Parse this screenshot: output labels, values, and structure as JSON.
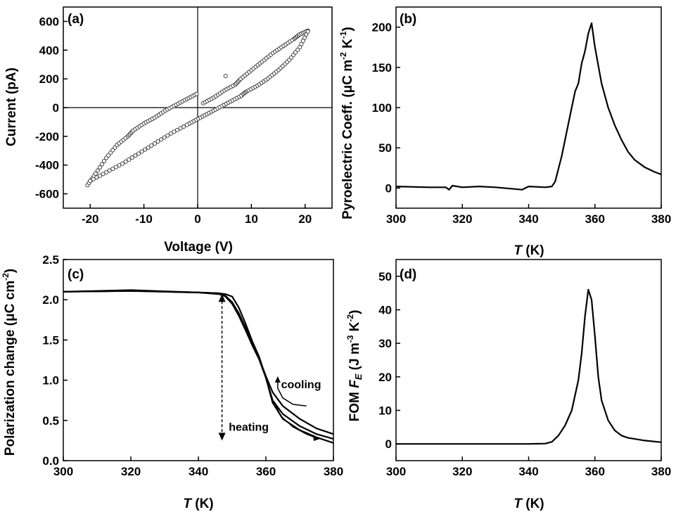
{
  "chart_data": [
    {
      "id": "a",
      "panel_label": "(a)",
      "type": "scatter",
      "xlabel": "Voltage (V)",
      "ylabel": "Current (pA)",
      "xlim": [
        -25,
        25
      ],
      "ylim": [
        -700,
        700
      ],
      "xticks": [
        -20,
        -10,
        0,
        10,
        20
      ],
      "yticks": [
        -600,
        -400,
        -200,
        0,
        200,
        400,
        600
      ],
      "zero_lines": true,
      "marker": "open-circle",
      "series": [
        {
          "branch": "upper",
          "x": [
            -20.5,
            -19,
            -17,
            -15,
            -13,
            -12,
            -10,
            -8,
            -6,
            -4,
            -2,
            -0.2
          ],
          "y": [
            -540,
            -460,
            -350,
            -260,
            -200,
            -160,
            -110,
            -70,
            -20,
            20,
            60,
            95
          ]
        },
        {
          "branch": "forward",
          "x": [
            1,
            3,
            5,
            7,
            8,
            10,
            12,
            14,
            16,
            18,
            19,
            20.5
          ],
          "y": [
            30,
            70,
            120,
            160,
            200,
            260,
            320,
            380,
            430,
            480,
            510,
            535
          ]
        },
        {
          "branch": "return",
          "x": [
            20.5,
            19,
            17,
            15,
            13,
            11,
            9,
            8,
            6,
            4,
            2,
            0,
            -2,
            -5,
            -8,
            -11,
            -14,
            -17,
            -20
          ],
          "y": [
            530,
            420,
            330,
            260,
            200,
            150,
            110,
            80,
            40,
            0,
            -40,
            -80,
            -120,
            -180,
            -250,
            -320,
            -390,
            -450,
            -510
          ]
        },
        {
          "branch": "outlier",
          "x": [
            5.2
          ],
          "y": [
            220
          ]
        }
      ]
    },
    {
      "id": "b",
      "panel_label": "(b)",
      "type": "line",
      "xlabel_var": "T",
      "xlabel_unit": "(K)",
      "ylabel": "Pyroelectric Coeff. (μC m",
      "ylabel_sup1": "-2",
      "ylabel_mid": " K",
      "ylabel_sup2": "-1",
      "ylabel_end": ")",
      "xlim": [
        300,
        380
      ],
      "ylim": [
        -25,
        225
      ],
      "xticks": [
        300,
        320,
        340,
        360,
        380
      ],
      "yticks": [
        0,
        50,
        100,
        150,
        200
      ],
      "x": [
        300,
        310,
        315,
        316,
        317,
        320,
        325,
        330,
        338,
        340,
        345,
        347,
        348,
        350,
        352,
        354,
        355,
        356,
        357,
        358,
        359,
        360,
        362,
        364,
        366,
        368,
        370,
        372,
        375,
        378,
        380
      ],
      "y": [
        2,
        1,
        1,
        -2,
        3,
        1,
        2,
        1,
        -2,
        2,
        1,
        2,
        8,
        40,
        80,
        120,
        130,
        155,
        170,
        192,
        205,
        175,
        130,
        100,
        78,
        60,
        45,
        35,
        26,
        20,
        17
      ]
    },
    {
      "id": "c",
      "panel_label": "(c)",
      "type": "line",
      "xlabel_var": "T",
      "xlabel_unit": "(K)",
      "ylabel": "Polarization change (μC cm",
      "ylabel_sup1": "-2",
      "ylabel_end": ")",
      "xlim": [
        300,
        380
      ],
      "ylim": [
        0.0,
        2.5
      ],
      "xticks": [
        300,
        320,
        340,
        360,
        380
      ],
      "yticks": [
        0.0,
        0.5,
        1.0,
        1.5,
        2.0,
        2.5
      ],
      "ytick_labels": [
        "0.0",
        "0.5",
        "1.0",
        "1.5",
        "2.0",
        "2.5"
      ],
      "series": [
        {
          "x": [
            300,
            320,
            340,
            346,
            348,
            350,
            352,
            354,
            356,
            358,
            360,
            362,
            365,
            370,
            375,
            380
          ],
          "y": [
            2.1,
            2.11,
            2.09,
            2.07,
            2.05,
            1.97,
            1.83,
            1.65,
            1.45,
            1.27,
            1.05,
            0.85,
            0.68,
            0.52,
            0.4,
            0.33
          ]
        },
        {
          "x": [
            300,
            320,
            340,
            346,
            348,
            350,
            352,
            354,
            356,
            358,
            360,
            362,
            365,
            370,
            375,
            380
          ],
          "y": [
            2.1,
            2.12,
            2.09,
            2.08,
            2.04,
            1.95,
            1.8,
            1.62,
            1.43,
            1.26,
            1.03,
            0.75,
            0.58,
            0.43,
            0.33,
            0.27
          ]
        },
        {
          "x": [
            300,
            320,
            340,
            346,
            348,
            350,
            352,
            354,
            356,
            358,
            360,
            362,
            365,
            370,
            375,
            380
          ],
          "y": [
            2.1,
            2.11,
            2.09,
            2.08,
            2.07,
            2.04,
            1.9,
            1.7,
            1.48,
            1.29,
            1.03,
            0.72,
            0.52,
            0.38,
            0.29,
            0.22
          ]
        }
      ],
      "double_arrow": {
        "x": 347,
        "y_top": 2.07,
        "y_bottom": 0.25
      },
      "annotations": [
        "cooling",
        "heating"
      ],
      "cooling_arrow": {
        "x": [
          372,
          368,
          365,
          363.5,
          363.5
        ],
        "y": [
          0.68,
          0.7,
          0.78,
          0.9,
          0.98
        ]
      },
      "heating_arrow": {
        "x": [
          363,
          364.5,
          368,
          372,
          375
        ],
        "y": [
          0.68,
          0.55,
          0.42,
          0.33,
          0.28
        ]
      },
      "cooling_label_at": {
        "x": 364.5,
        "y": 0.9
      },
      "heating_label_at": {
        "x": 349,
        "y": 0.37
      }
    },
    {
      "id": "d",
      "panel_label": "(d)",
      "type": "line",
      "xlabel_var": "T",
      "xlabel_unit": "(K)",
      "ylabel": "FOM ",
      "ylabel_var": "F",
      "ylabel_sub": "E",
      "ylabel_rest": " (J m",
      "ylabel_sup1": "-3",
      "ylabel_mid": "  K",
      "ylabel_sup2": "-2",
      "ylabel_end": ")",
      "xlim": [
        300,
        380
      ],
      "ylim": [
        -5,
        55
      ],
      "xticks": [
        300,
        320,
        340,
        360,
        380
      ],
      "yticks": [
        0,
        10,
        20,
        30,
        40,
        50
      ],
      "x": [
        300,
        320,
        340,
        345,
        347,
        349,
        351,
        353,
        355,
        356,
        357,
        358,
        359,
        360,
        361,
        362,
        364,
        366,
        368,
        370,
        375,
        380
      ],
      "y": [
        0,
        0,
        0,
        0.1,
        0.6,
        2.5,
        5.5,
        10,
        19,
        27,
        38,
        46,
        43,
        32,
        20,
        13,
        7,
        4,
        2.5,
        1.8,
        1.0,
        0.5
      ]
    }
  ]
}
